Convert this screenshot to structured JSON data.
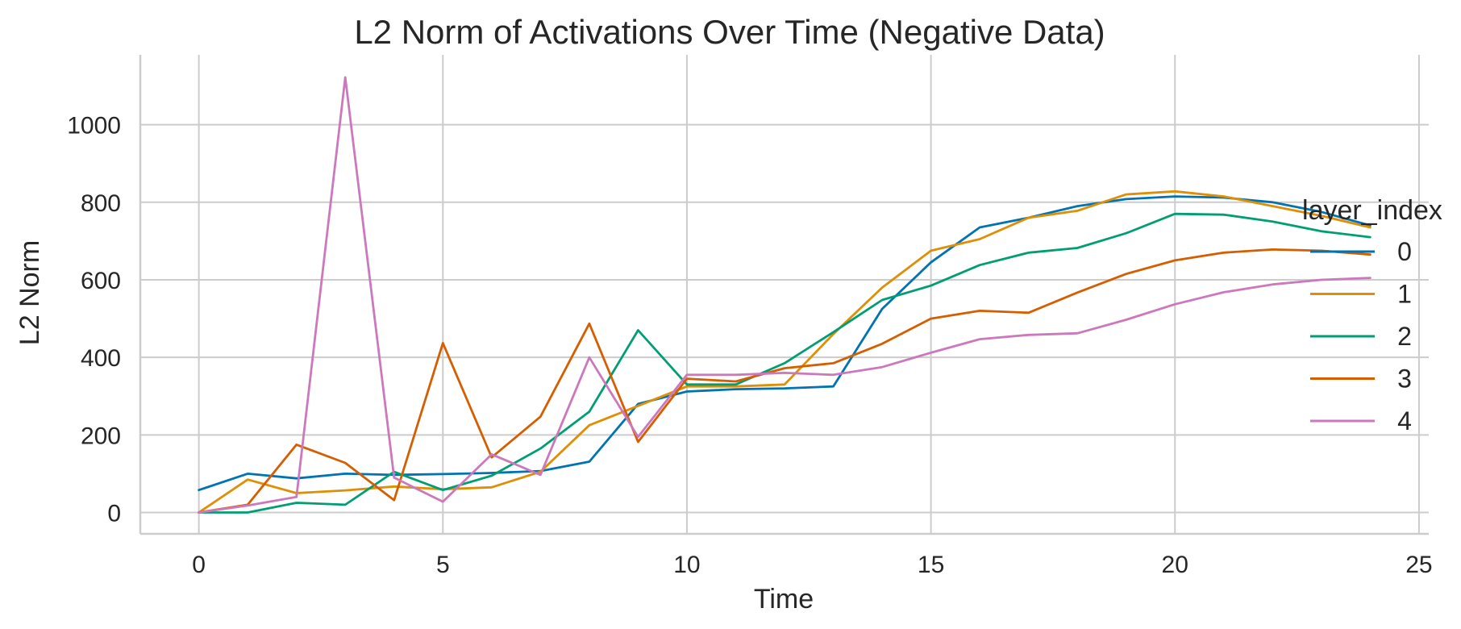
{
  "chart_data": {
    "type": "line",
    "title": "L2 Norm of Activations Over Time (Negative Data)",
    "xlabel": "Time",
    "ylabel": "L2 Norm",
    "xlim": [
      -1.2,
      25.2
    ],
    "ylim": [
      -55,
      1180
    ],
    "xticks": [
      0,
      5,
      10,
      15,
      20,
      25
    ],
    "yticks": [
      0,
      200,
      400,
      600,
      800,
      1000
    ],
    "grid": true,
    "legend": {
      "title": "layer_index",
      "placement": "right"
    },
    "x": [
      0,
      1,
      2,
      3,
      4,
      5,
      6,
      7,
      8,
      9,
      10,
      11,
      12,
      13,
      14,
      15,
      16,
      17,
      18,
      19,
      20,
      21,
      22,
      23,
      24
    ],
    "series": [
      {
        "name": "0",
        "color": "#0173b2",
        "values": [
          58,
          100,
          88,
          100,
          97,
          99,
          102,
          107,
          131,
          280,
          312,
          318,
          320,
          325,
          525,
          645,
          735,
          760,
          790,
          808,
          815,
          812,
          800,
          775,
          740
        ]
      },
      {
        "name": "1",
        "color": "#de8f05",
        "values": [
          0,
          85,
          50,
          57,
          67,
          60,
          65,
          105,
          225,
          275,
          325,
          325,
          330,
          460,
          580,
          675,
          705,
          760,
          778,
          820,
          828,
          815,
          790,
          765,
          735
        ]
      },
      {
        "name": "2",
        "color": "#029e73",
        "values": [
          0,
          0,
          25,
          20,
          105,
          58,
          95,
          165,
          260,
          470,
          330,
          330,
          385,
          465,
          548,
          585,
          638,
          670,
          682,
          720,
          770,
          768,
          750,
          725,
          710
        ]
      },
      {
        "name": "3",
        "color": "#d55e00",
        "values": [
          0,
          20,
          175,
          128,
          32,
          437,
          142,
          247,
          487,
          182,
          345,
          338,
          372,
          385,
          435,
          500,
          520,
          515,
          567,
          615,
          650,
          670,
          678,
          675,
          665
        ]
      },
      {
        "name": "4",
        "color": "#cc78bc",
        "values": [
          0,
          18,
          40,
          1122,
          90,
          28,
          150,
          97,
          400,
          195,
          355,
          355,
          360,
          355,
          375,
          412,
          447,
          458,
          462,
          497,
          537,
          568,
          588,
          600,
          605
        ]
      }
    ]
  }
}
